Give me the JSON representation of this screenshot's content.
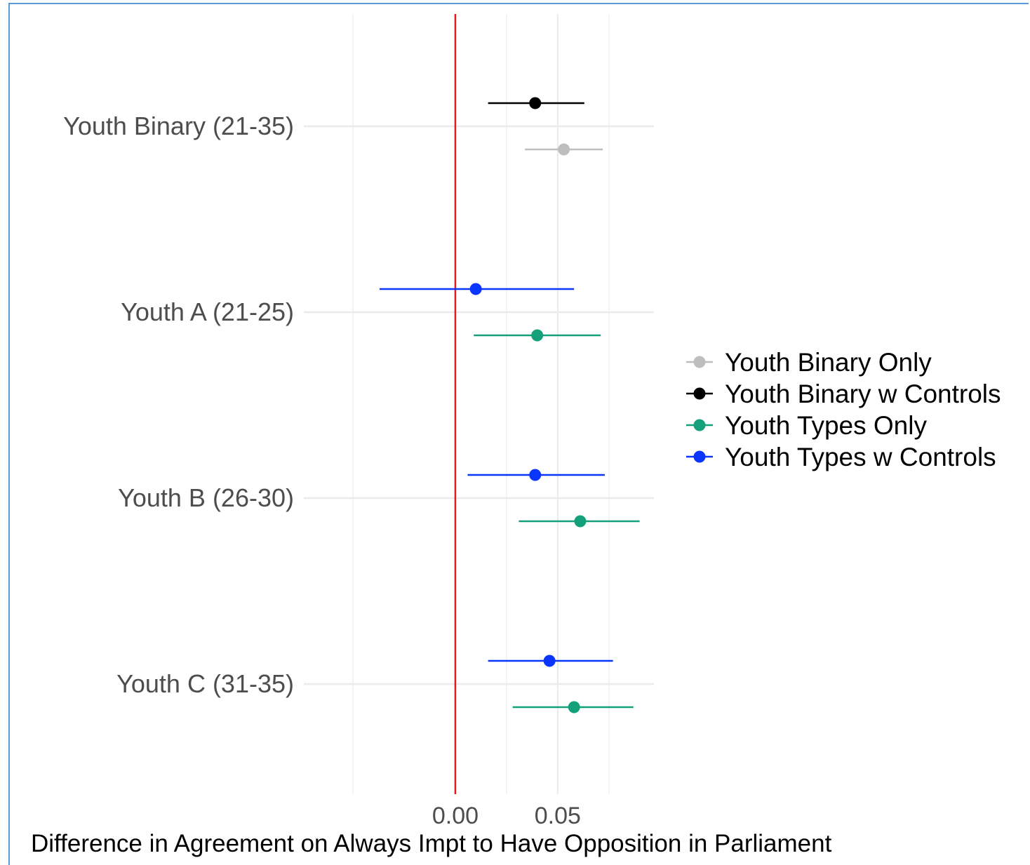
{
  "chart_data": {
    "type": "scatter",
    "style": "coefficient-plot with horizontal confidence intervals",
    "xlabel": "Difference in Agreement on Always Impt to Have Opposition in Parliament",
    "ylabel": "",
    "xlim": [
      -0.074,
      0.097
    ],
    "x_ticks": [
      {
        "value": 0.0,
        "label": "0.00"
      },
      {
        "value": 0.05,
        "label": "0.05"
      }
    ],
    "x_minor_grid": [
      -0.05,
      0.025,
      0.075
    ],
    "reference_line": {
      "x": 0.0,
      "color": "#e41a1c"
    },
    "grid": true,
    "legend_position": "right",
    "categories": [
      "Youth Binary (21-35)",
      "Youth A (21-25)",
      "Youth B (26-30)",
      "Youth C (31-35)"
    ],
    "series": [
      {
        "name": "Youth Binary Only",
        "color": "#bebebe",
        "points": [
          {
            "category": "Youth Binary (21-35)",
            "estimate": 0.053,
            "lower": 0.034,
            "upper": 0.072
          }
        ]
      },
      {
        "name": "Youth Binary w Controls",
        "color": "#000000",
        "points": [
          {
            "category": "Youth Binary (21-35)",
            "estimate": 0.039,
            "lower": 0.016,
            "upper": 0.063
          }
        ]
      },
      {
        "name": "Youth Types Only",
        "color": "#13a07a",
        "points": [
          {
            "category": "Youth A (21-25)",
            "estimate": 0.04,
            "lower": 0.009,
            "upper": 0.071
          },
          {
            "category": "Youth B (26-30)",
            "estimate": 0.061,
            "lower": 0.031,
            "upper": 0.09
          },
          {
            "category": "Youth C (31-35)",
            "estimate": 0.058,
            "lower": 0.028,
            "upper": 0.087
          }
        ]
      },
      {
        "name": "Youth Types w Controls",
        "color": "#0a35ff",
        "points": [
          {
            "category": "Youth A (21-25)",
            "estimate": 0.01,
            "lower": -0.037,
            "upper": 0.058
          },
          {
            "category": "Youth B (26-30)",
            "estimate": 0.039,
            "lower": 0.006,
            "upper": 0.073
          },
          {
            "category": "Youth C (31-35)",
            "estimate": 0.046,
            "lower": 0.016,
            "upper": 0.077
          }
        ]
      }
    ]
  }
}
